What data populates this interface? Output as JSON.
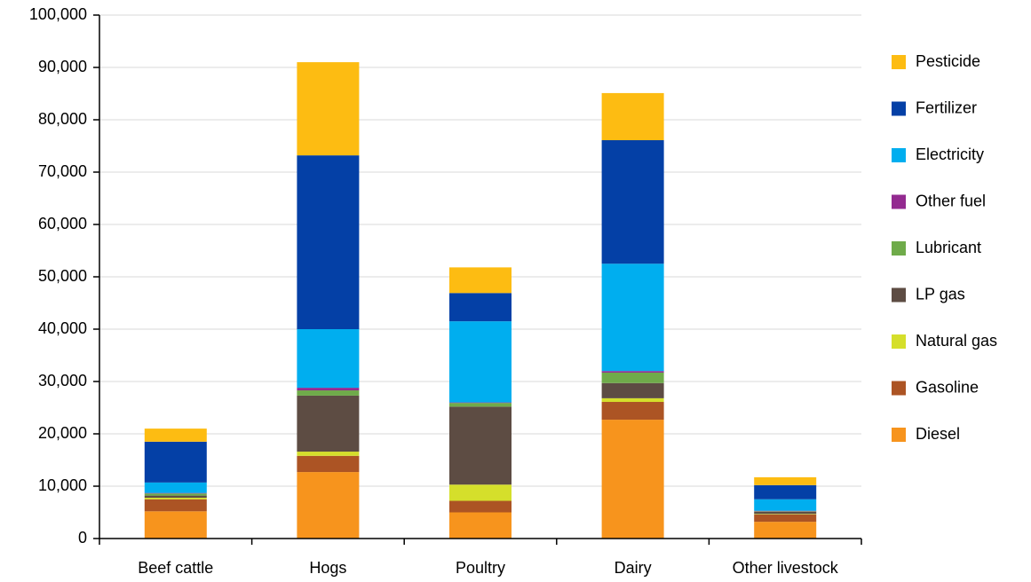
{
  "chart_data": {
    "type": "stacked_bar",
    "categories": [
      "Beef cattle",
      "Hogs",
      "Poultry",
      "Dairy",
      "Other livestock"
    ],
    "series": [
      {
        "name": "Diesel",
        "color": "#f7941d",
        "values": [
          5200,
          12700,
          5000,
          22700,
          3200
        ]
      },
      {
        "name": "Gasoline",
        "color": "#ac5424",
        "values": [
          2300,
          3100,
          2200,
          3400,
          1400
        ]
      },
      {
        "name": "Natural gas",
        "color": "#d5df2b",
        "values": [
          300,
          800,
          3100,
          700,
          100
        ]
      },
      {
        "name": "LP gas",
        "color": "#5d4c43",
        "values": [
          400,
          10700,
          14900,
          2900,
          400
        ]
      },
      {
        "name": "Lubricant",
        "color": "#6fab4a",
        "values": [
          400,
          1000,
          700,
          2000,
          100
        ]
      },
      {
        "name": "Other fuel",
        "color": "#932a90",
        "values": [
          100,
          500,
          100,
          300,
          100
        ]
      },
      {
        "name": "Electricity",
        "color": "#00aeef",
        "values": [
          2000,
          11200,
          15500,
          20500,
          2200
        ]
      },
      {
        "name": "Fertilizer",
        "color": "#0440a6",
        "values": [
          7800,
          33200,
          5400,
          23600,
          2700
        ]
      },
      {
        "name": "Pesticide",
        "color": "#fdbc12",
        "values": [
          2500,
          17800,
          4900,
          9000,
          1500
        ]
      }
    ],
    "ylim": [
      0,
      100000
    ],
    "yticks": [
      0,
      {
        "value": 10000,
        "label": "10,000"
      },
      {
        "value": 20000,
        "label": "20,000"
      },
      {
        "value": 30000,
        "label": "30,000"
      },
      {
        "value": 40000,
        "label": "40,000"
      },
      {
        "value": 50000,
        "label": "50,000"
      },
      {
        "value": 60000,
        "label": "60,000"
      },
      {
        "value": 70000,
        "label": "70,000"
      },
      {
        "value": 80000,
        "label": "80,000"
      },
      {
        "value": 90000,
        "label": "90,000"
      },
      {
        "value": 100000,
        "label": "100,000"
      }
    ],
    "grid": true,
    "legend": "right"
  }
}
